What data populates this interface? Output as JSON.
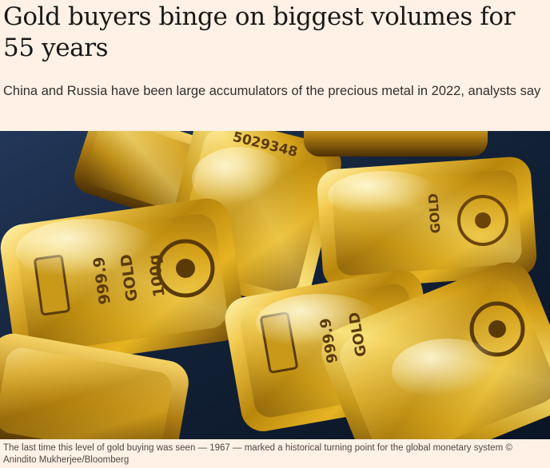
{
  "article": {
    "headline": "Gold buyers binge on biggest volumes for 55 years",
    "standfirst": "China and Russia have been large accumulators of the precious metal in 2022, analysts say",
    "caption": "The last time this level of gold buying was seen — 1967 — marked a historical turning point for the global monetary system © Anindito Mukherjee/Bloomberg"
  },
  "photo": {
    "subject": "gold-bars",
    "colors": {
      "background": "#132238",
      "gold_light": "#f8e27a",
      "gold_mid": "#c99a1a",
      "gold_dark": "#5a3a06"
    },
    "bar_markings": {
      "fineness": "999.9",
      "metal": "GOLD",
      "weight": "100g",
      "serial": "5029348"
    }
  }
}
